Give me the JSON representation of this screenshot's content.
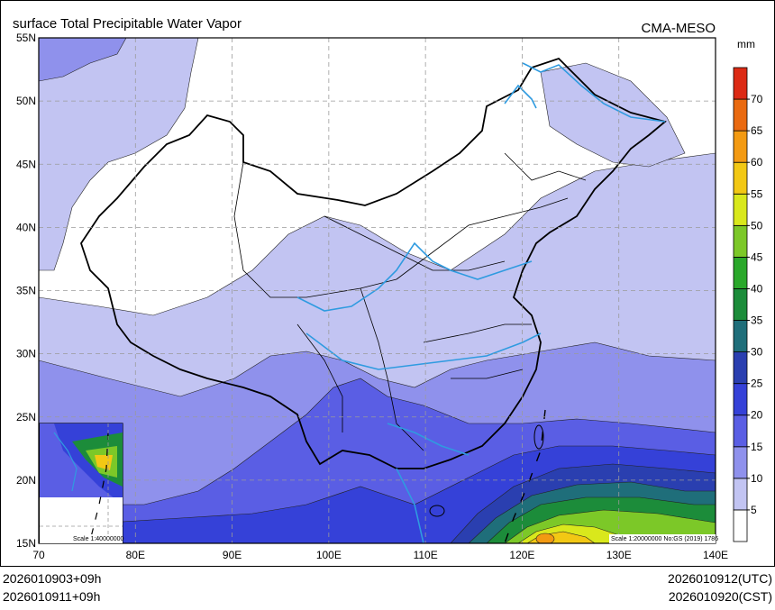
{
  "header": {
    "title": "surface Total Precipitable Water Vapor",
    "producer": "CMA-MESO",
    "unit": "mm"
  },
  "axes": {
    "lat_labels": [
      "15N",
      "20N",
      "25N",
      "30N",
      "35N",
      "40N",
      "45N",
      "50N",
      "55N"
    ],
    "lon_labels": [
      "70",
      "80E",
      "90E",
      "100E",
      "110E",
      "120E",
      "130E",
      "140E"
    ]
  },
  "legend": {
    "labels": [
      "5",
      "10",
      "15",
      "20",
      "25",
      "30",
      "35",
      "40",
      "45",
      "50",
      "55",
      "60",
      "65",
      "70"
    ],
    "colors": [
      "#ffffff",
      "#c2c4f2",
      "#8f91ec",
      "#5a5ee4",
      "#3541d8",
      "#2a3fb0",
      "#1f6e7a",
      "#1c8c3a",
      "#2aa82a",
      "#7cc828",
      "#d9e81c",
      "#f2c814",
      "#f39a12",
      "#ea6a10",
      "#dc2a14"
    ]
  },
  "scale_main": "Scale 1:20000000 No:GS (2019) 1786",
  "scale_inset": "Scale 1:40000000",
  "footer": {
    "init_time": "2026010903+09h",
    "valid_time_left": "2026010911+09h",
    "utc_time": "2026010912(UTC)",
    "cst_time": "2026010920(CST)"
  },
  "colors": {
    "river": "#2f9be0",
    "border": "#000000",
    "grid": "#9a9a9a"
  }
}
